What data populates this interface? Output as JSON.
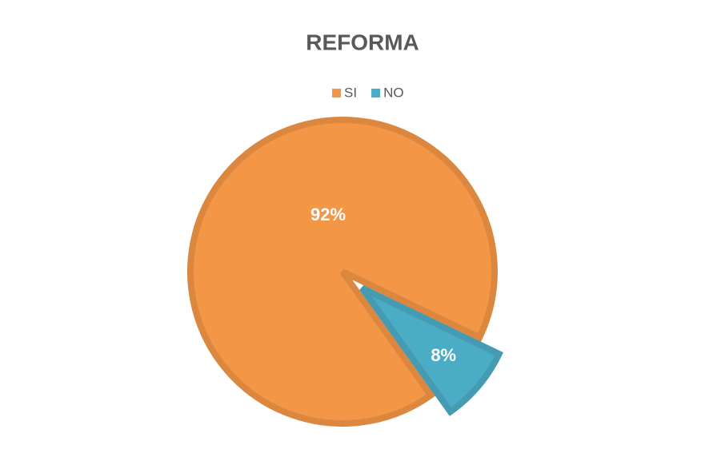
{
  "chart_data": {
    "type": "pie",
    "title": "REFORMA",
    "categories": [
      "SI",
      "NO"
    ],
    "values": [
      92,
      8
    ],
    "value_labels": [
      "92%",
      "8%"
    ],
    "colors": [
      "#f39646",
      "#4bacc6"
    ],
    "exploded": [
      false,
      true
    ],
    "legend": "top"
  }
}
